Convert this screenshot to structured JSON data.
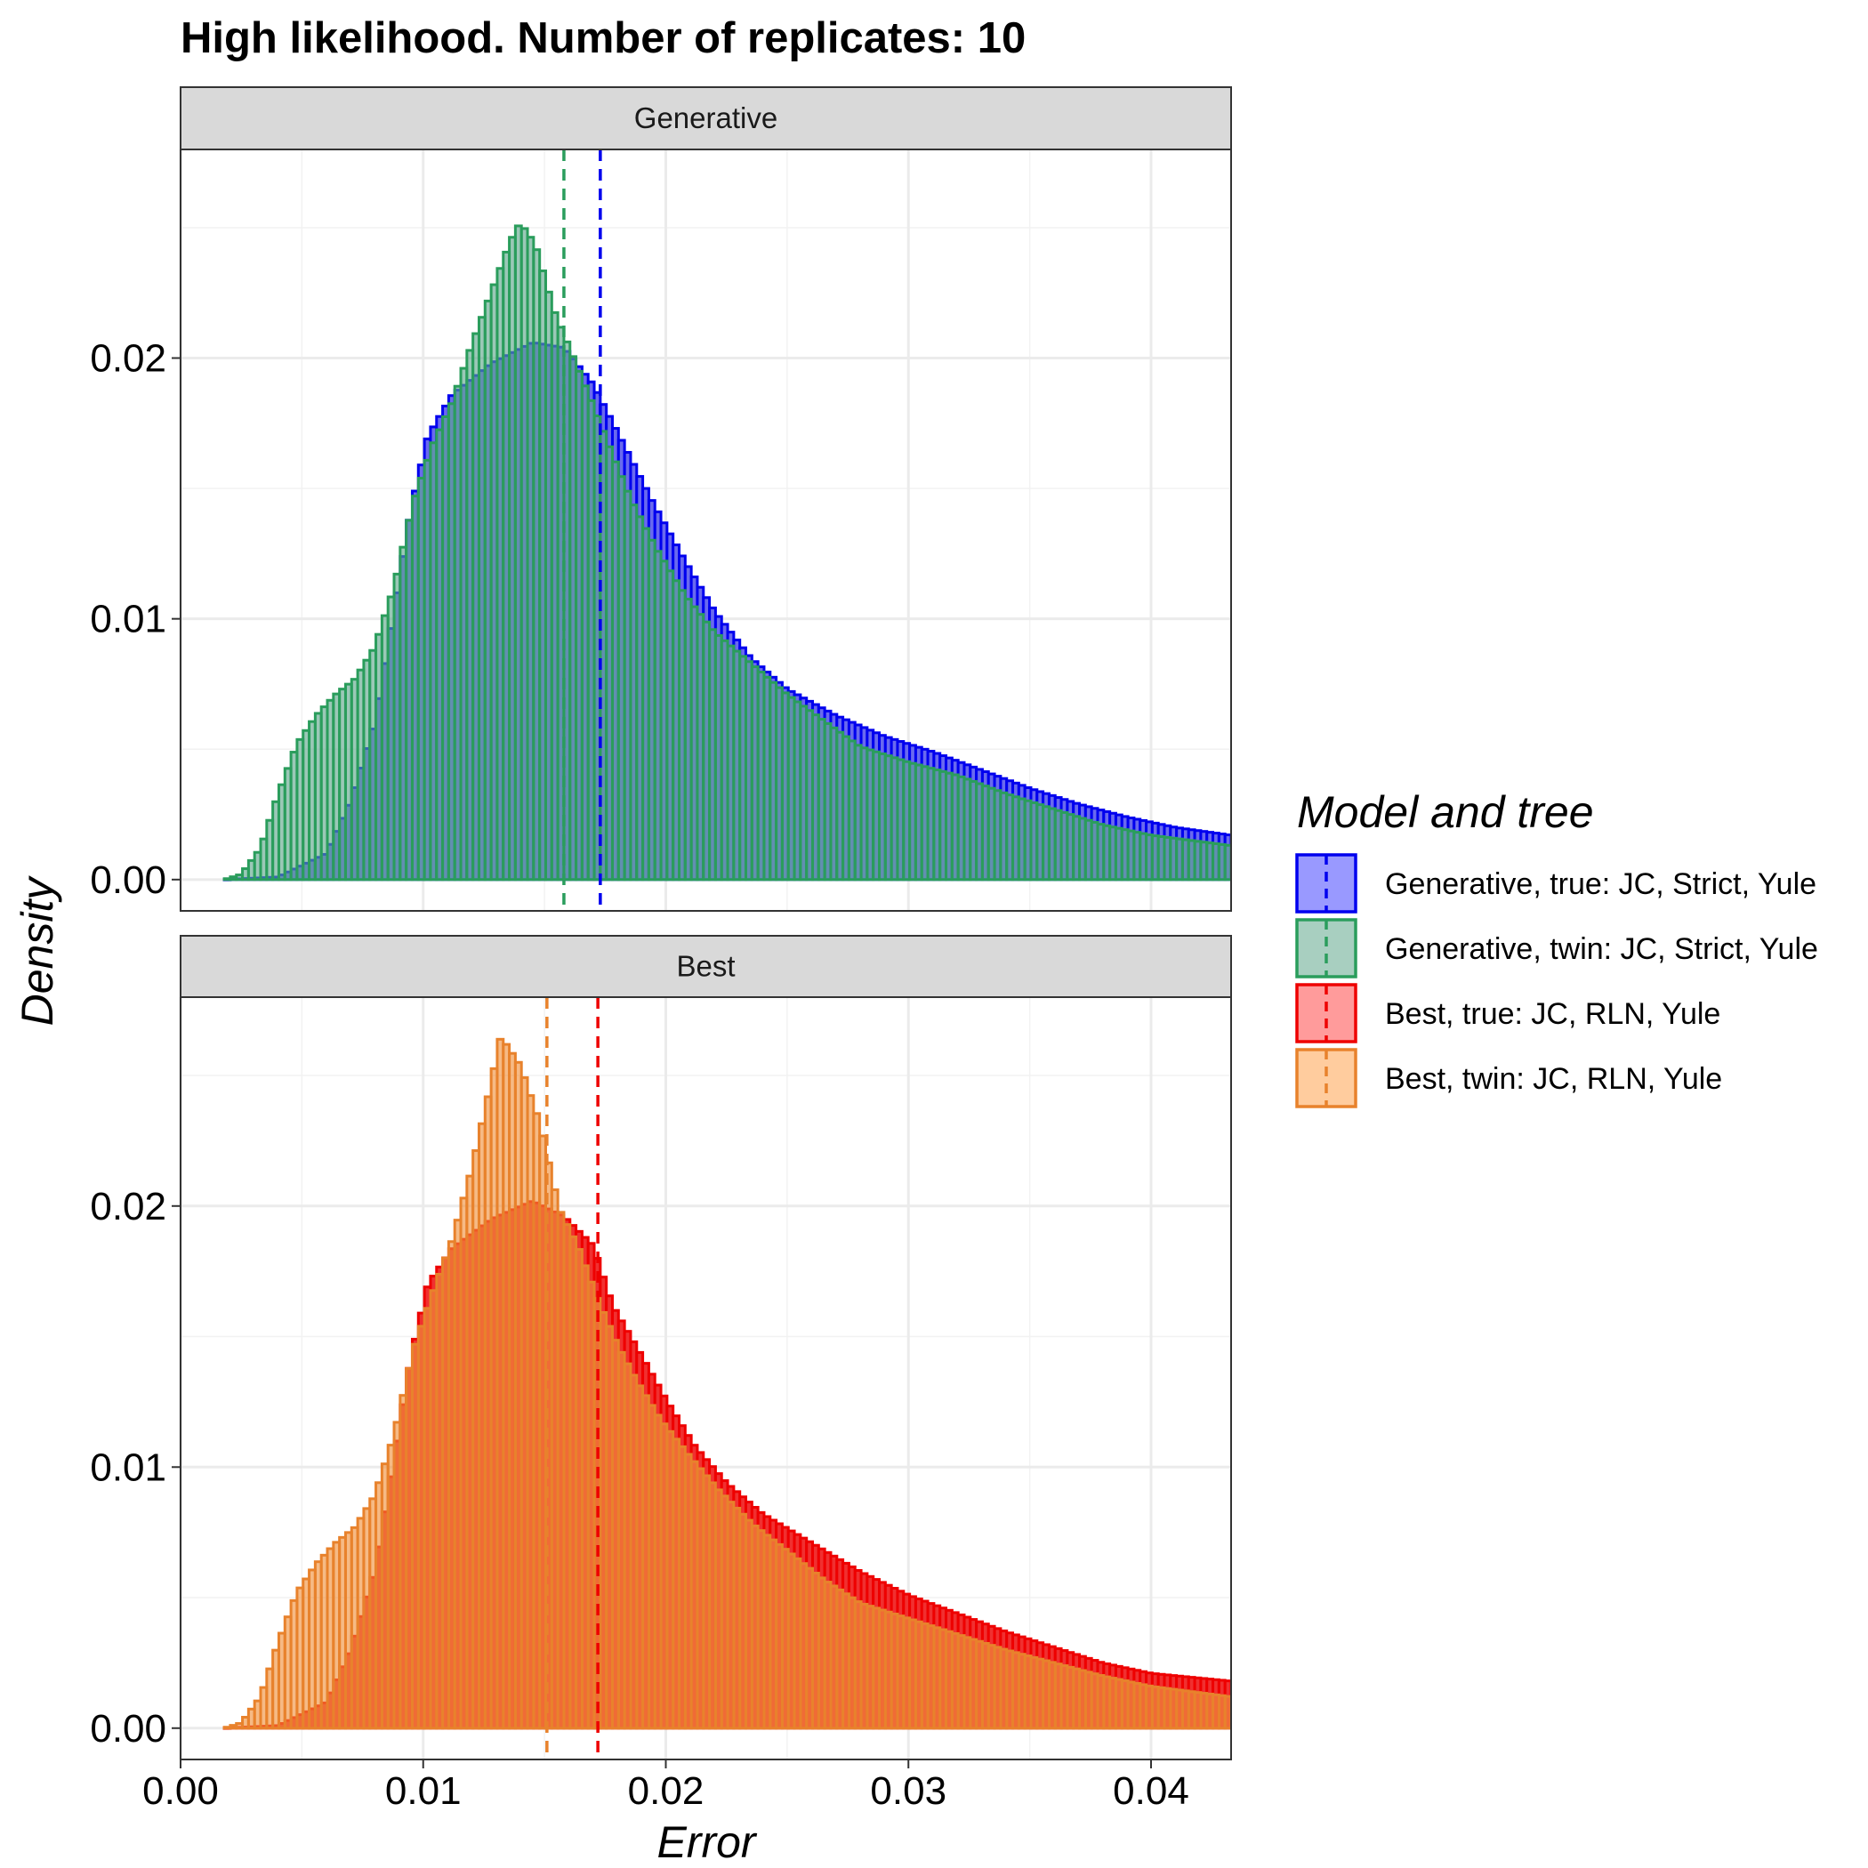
{
  "chart_data": {
    "type": "histogram",
    "title": "High likelihood. Number of replicates:  10",
    "xlabel": "Error",
    "ylabel": "Density",
    "xlim": [
      0,
      0.0433
    ],
    "ylim": [
      -0.0012,
      0.028
    ],
    "x_ticks": [
      {
        "value": 0.0,
        "label": "0.00"
      },
      {
        "value": 0.01,
        "label": "0.01"
      },
      {
        "value": 0.02,
        "label": "0.02"
      },
      {
        "value": 0.03,
        "label": "0.03"
      },
      {
        "value": 0.04,
        "label": "0.04"
      }
    ],
    "y_ticks": [
      {
        "value": 0.0,
        "label": "0.00"
      },
      {
        "value": 0.01,
        "label": "0.01"
      },
      {
        "value": 0.02,
        "label": "0.02"
      }
    ],
    "grid": true,
    "legend": {
      "title": "Model and tree",
      "position": "right",
      "entries": [
        {
          "label": "Generative, true: JC, Strict, Yule",
          "fill": "#9999ff",
          "stroke": "#0000ee"
        },
        {
          "label": "Generative, twin: JC, Strict, Yule",
          "fill": "#a8cfc0",
          "stroke": "#2a9d5c"
        },
        {
          "label": "Best, true: JC, RLN, Yule",
          "fill": "#ff9b9b",
          "stroke": "#ee0000"
        },
        {
          "label": "Best, twin: JC, RLN, Yule",
          "fill": "#ffcc9e",
          "stroke": "#e8822c"
        }
      ]
    },
    "panels": [
      {
        "strip": "Generative",
        "series": [
          {
            "name": "Generative, true: JC, Strict, Yule",
            "fill": "#6a6aee",
            "stroke": "#0000ee",
            "mean": 0.0173,
            "points": [
              [
                0.0018,
                0
              ],
              [
                0.004,
                0.0001
              ],
              [
                0.006,
                0.001
              ],
              [
                0.007,
                0.003
              ],
              [
                0.008,
                0.006
              ],
              [
                0.0088,
                0.0103
              ],
              [
                0.0095,
                0.0142
              ],
              [
                0.0102,
                0.017
              ],
              [
                0.0112,
                0.0186
              ],
              [
                0.0128,
                0.0198
              ],
              [
                0.0145,
                0.0206
              ],
              [
                0.0158,
                0.0204
              ],
              [
                0.017,
                0.019
              ],
              [
                0.0182,
                0.0168
              ],
              [
                0.0195,
                0.0144
              ],
              [
                0.0208,
                0.0122
              ],
              [
                0.022,
                0.0103
              ],
              [
                0.0235,
                0.0085
              ],
              [
                0.025,
                0.0073
              ],
              [
                0.027,
                0.0063
              ],
              [
                0.029,
                0.0055
              ],
              [
                0.031,
                0.0049
              ],
              [
                0.033,
                0.0042
              ],
              [
                0.035,
                0.0035
              ],
              [
                0.037,
                0.0029
              ],
              [
                0.039,
                0.0024
              ],
              [
                0.041,
                0.002
              ],
              [
                0.0433,
                0.0017
              ]
            ]
          },
          {
            "name": "Generative, twin: JC, Strict, Yule",
            "fill": "#5ea68a",
            "stroke": "#2a9d5c",
            "mean": 0.0158,
            "points": [
              [
                0.0018,
                0
              ],
              [
                0.0025,
                0.0002
              ],
              [
                0.0033,
                0.0012
              ],
              [
                0.004,
                0.0032
              ],
              [
                0.0048,
                0.0052
              ],
              [
                0.0056,
                0.0063
              ],
              [
                0.0064,
                0.0071
              ],
              [
                0.0072,
                0.0077
              ],
              [
                0.008,
                0.0089
              ],
              [
                0.0088,
                0.0112
              ],
              [
                0.0096,
                0.0145
              ],
              [
                0.0104,
                0.0167
              ],
              [
                0.0112,
                0.0183
              ],
              [
                0.012,
                0.0205
              ],
              [
                0.0128,
                0.0225
              ],
              [
                0.0136,
                0.0245
              ],
              [
                0.014,
                0.0252
              ],
              [
                0.0146,
                0.0244
              ],
              [
                0.0154,
                0.0218
              ],
              [
                0.0162,
                0.02
              ],
              [
                0.017,
                0.0182
              ],
              [
                0.0178,
                0.0163
              ],
              [
                0.0186,
                0.0145
              ],
              [
                0.0196,
                0.0127
              ],
              [
                0.0208,
                0.0109
              ],
              [
                0.022,
                0.0095
              ],
              [
                0.0235,
                0.0083
              ],
              [
                0.025,
                0.0071
              ],
              [
                0.0265,
                0.0061
              ],
              [
                0.028,
                0.0051
              ],
              [
                0.03,
                0.0045
              ],
              [
                0.032,
                0.004
              ],
              [
                0.034,
                0.0033
              ],
              [
                0.036,
                0.0027
              ],
              [
                0.038,
                0.0021
              ],
              [
                0.04,
                0.0017
              ],
              [
                0.0433,
                0.0013
              ]
            ]
          }
        ]
      },
      {
        "strip": "Best",
        "series": [
          {
            "name": "Best, true: JC, RLN, Yule",
            "fill": "#f03030",
            "stroke": "#ee0000",
            "mean": 0.0172,
            "points": [
              [
                0.0018,
                0
              ],
              [
                0.004,
                0.0001
              ],
              [
                0.006,
                0.001
              ],
              [
                0.007,
                0.003
              ],
              [
                0.008,
                0.006
              ],
              [
                0.0088,
                0.0103
              ],
              [
                0.0095,
                0.0142
              ],
              [
                0.0102,
                0.017
              ],
              [
                0.0112,
                0.0184
              ],
              [
                0.0128,
                0.0195
              ],
              [
                0.0145,
                0.0202
              ],
              [
                0.0158,
                0.0196
              ],
              [
                0.017,
                0.0185
              ],
              [
                0.0178,
                0.0162
              ],
              [
                0.0188,
                0.0146
              ],
              [
                0.02,
                0.0126
              ],
              [
                0.0212,
                0.0108
              ],
              [
                0.0225,
                0.0094
              ],
              [
                0.024,
                0.0082
              ],
              [
                0.026,
                0.0071
              ],
              [
                0.028,
                0.006
              ],
              [
                0.03,
                0.0051
              ],
              [
                0.032,
                0.0044
              ],
              [
                0.034,
                0.0037
              ],
              [
                0.036,
                0.0031
              ],
              [
                0.038,
                0.0025
              ],
              [
                0.04,
                0.0021
              ],
              [
                0.0433,
                0.0018
              ]
            ]
          },
          {
            "name": "Best, twin: JC, RLN, Yule",
            "fill": "#f0903a",
            "stroke": "#e8822c",
            "mean": 0.0151,
            "points": [
              [
                0.0018,
                0
              ],
              [
                0.0025,
                0.0002
              ],
              [
                0.0033,
                0.0012
              ],
              [
                0.004,
                0.0032
              ],
              [
                0.0048,
                0.0052
              ],
              [
                0.0056,
                0.0063
              ],
              [
                0.0064,
                0.0071
              ],
              [
                0.0072,
                0.0077
              ],
              [
                0.008,
                0.0089
              ],
              [
                0.0088,
                0.0112
              ],
              [
                0.0096,
                0.0145
              ],
              [
                0.0104,
                0.0167
              ],
              [
                0.0112,
                0.0187
              ],
              [
                0.012,
                0.0214
              ],
              [
                0.0128,
                0.0247
              ],
              [
                0.0132,
                0.0265
              ],
              [
                0.014,
                0.0254
              ],
              [
                0.0148,
                0.0232
              ],
              [
                0.0156,
                0.0199
              ],
              [
                0.0164,
                0.0184
              ],
              [
                0.0172,
                0.0164
              ],
              [
                0.018,
                0.0147
              ],
              [
                0.0188,
                0.0133
              ],
              [
                0.0198,
                0.0118
              ],
              [
                0.021,
                0.0104
              ],
              [
                0.0222,
                0.0091
              ],
              [
                0.0236,
                0.0078
              ],
              [
                0.025,
                0.0068
              ],
              [
                0.0265,
                0.0057
              ],
              [
                0.028,
                0.0048
              ],
              [
                0.03,
                0.0042
              ],
              [
                0.032,
                0.0036
              ],
              [
                0.034,
                0.003
              ],
              [
                0.036,
                0.0025
              ],
              [
                0.038,
                0.002
              ],
              [
                0.04,
                0.0016
              ],
              [
                0.0433,
                0.0012
              ]
            ]
          }
        ]
      }
    ]
  }
}
